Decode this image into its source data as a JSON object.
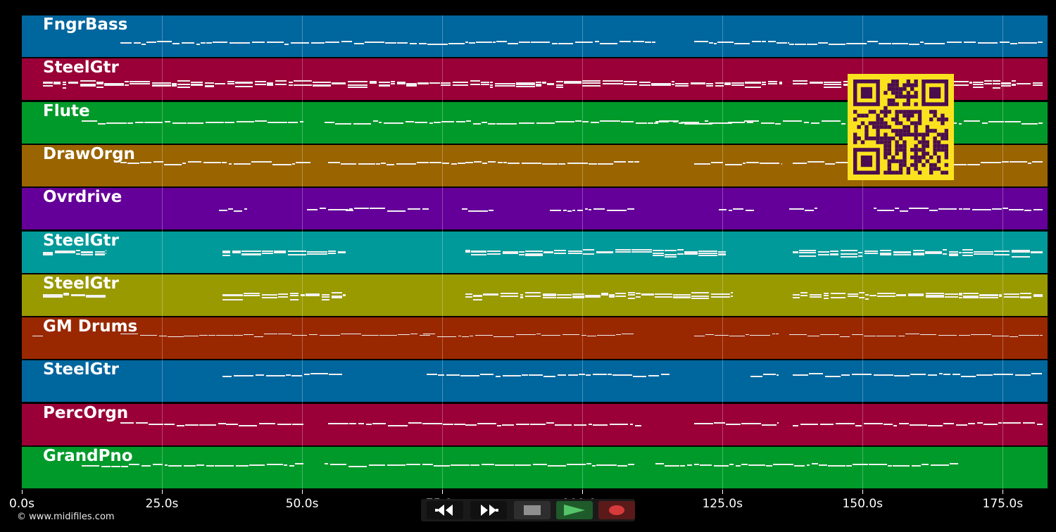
{
  "tracks": [
    {
      "name": "FngrBass",
      "color": "#00669e"
    },
    {
      "name": "SteelGtr",
      "color": "#9a0037"
    },
    {
      "name": "Flute",
      "color": "#009a2a"
    },
    {
      "name": "DrawOrgn",
      "color": "#9a6400"
    },
    {
      "name": "Ovrdrive",
      "color": "#640099"
    },
    {
      "name": "SteelGtr",
      "color": "#009a9a"
    },
    {
      "name": "SteelGtr",
      "color": "#999900"
    },
    {
      "name": "GM Drums",
      "color": "#992800"
    },
    {
      "name": "SteelGtr",
      "color": "#00669e"
    },
    {
      "name": "PercOrgn",
      "color": "#9a0037"
    },
    {
      "name": "GrandPno",
      "color": "#009a2a"
    }
  ],
  "timeline": {
    "duration_s": 183,
    "ticks": [
      "0.0s",
      "25.0s",
      "50.0s",
      "75.0s",
      "100.0s",
      "125.0s",
      "150.0s",
      "175.0s"
    ],
    "tick_values_s": [
      0,
      25,
      50,
      75,
      100,
      125,
      150,
      175
    ]
  },
  "footer": {
    "copyright": "© www.midifiles.com"
  },
  "transport": {
    "buttons": [
      {
        "name": "rewind-button",
        "icon": "rewind-icon",
        "color": "#ffffff"
      },
      {
        "name": "fast-forward-button",
        "icon": "fast-forward-icon",
        "color": "#ffffff"
      },
      {
        "name": "stop-button",
        "icon": "stop-icon",
        "color": "#8f8f8f"
      },
      {
        "name": "play-button",
        "icon": "play-icon",
        "color": "#56c46a"
      },
      {
        "name": "record-button",
        "icon": "record-icon",
        "color": "#d63a3a"
      }
    ]
  },
  "qr_code": {
    "icon": "qr-code-icon",
    "foreground": "#4a0e4e",
    "background": "#fbe21f"
  }
}
